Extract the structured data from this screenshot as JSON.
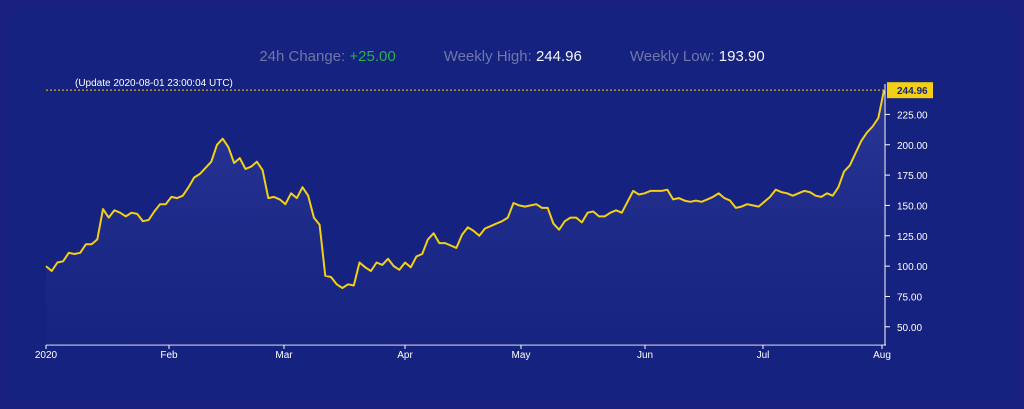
{
  "stats": {
    "change_label": "24h Change:",
    "change_value": "+25.00",
    "high_label": "Weekly High:",
    "high_value": "244.96",
    "low_label": "Weekly Low:",
    "low_value": "193.90"
  },
  "update_text": "(Update 2020-08-01 23:00:04 UTC)",
  "colors": {
    "line": "#f2d016",
    "background": "#16227f",
    "badge": "#f2d016",
    "positive": "#22b14c"
  },
  "chart_data": {
    "type": "area",
    "title": "",
    "xlabel": "",
    "ylabel": "",
    "ylim": [
      35,
      255
    ],
    "y_ticks": [
      "50.00",
      "75.00",
      "100.00",
      "125.00",
      "150.00",
      "175.00",
      "200.00",
      "225.00"
    ],
    "x_ticks": [
      "2020",
      "Feb",
      "Mar",
      "Apr",
      "May",
      "Jun",
      "Jul",
      "Aug"
    ],
    "current_value": "244.96",
    "grid": false,
    "series": [
      {
        "values": [
          100,
          96,
          103,
          104,
          111,
          110,
          111,
          118,
          118,
          122,
          147,
          140,
          146,
          144,
          141,
          144,
          143,
          137,
          138,
          145,
          151,
          151,
          157,
          156,
          158,
          165,
          173,
          176,
          181,
          186,
          200,
          205,
          198,
          185,
          189,
          180,
          182,
          186,
          179,
          156,
          157,
          155,
          151,
          160,
          156,
          165,
          158,
          140,
          134,
          92,
          91,
          85,
          82,
          85,
          84,
          103,
          99,
          96,
          103,
          101,
          106,
          100,
          97,
          103,
          99,
          108,
          110,
          122,
          127,
          119,
          119,
          117,
          115,
          126,
          132,
          129,
          125,
          131,
          133,
          135,
          137,
          140,
          152,
          150,
          149,
          150,
          151,
          148,
          148,
          135,
          130,
          137,
          140,
          140,
          136,
          144,
          145,
          141,
          141,
          144,
          146,
          144,
          153,
          162,
          159,
          160,
          162,
          162,
          162,
          163,
          155,
          156,
          154,
          153,
          154,
          153,
          155,
          157,
          160,
          156,
          154,
          148,
          149,
          151,
          150,
          149,
          153,
          157,
          163,
          161,
          160,
          158,
          160,
          162,
          161,
          158,
          157,
          160,
          158,
          165,
          178,
          183,
          193,
          203,
          210,
          215,
          222,
          244.96
        ]
      }
    ]
  }
}
